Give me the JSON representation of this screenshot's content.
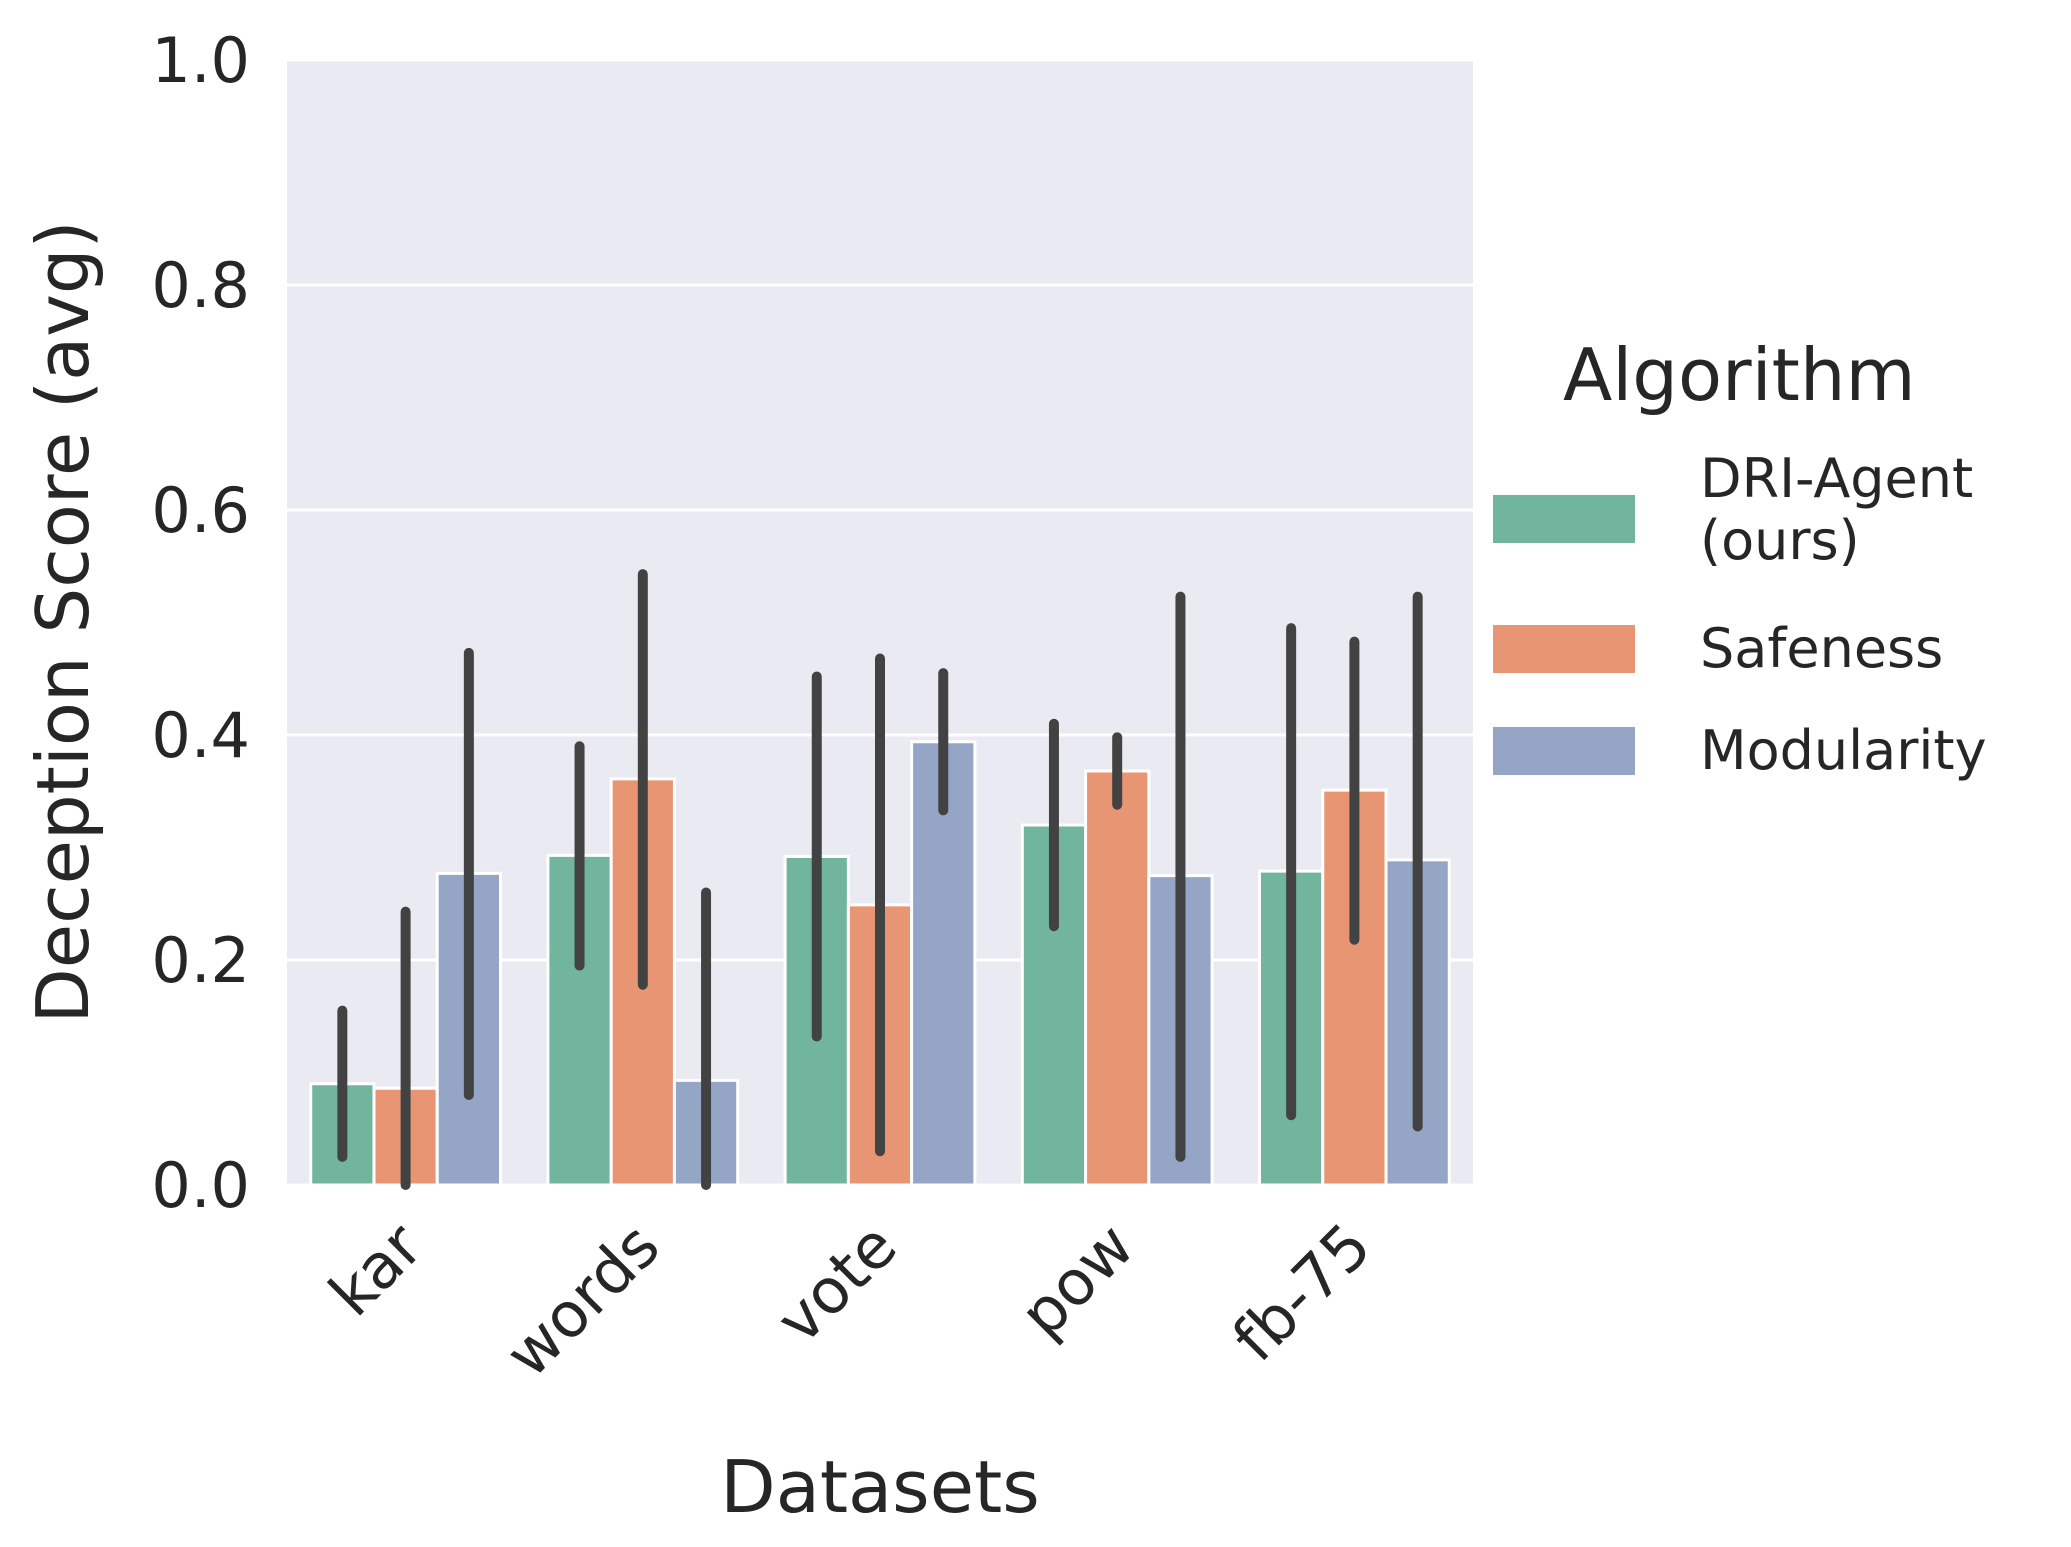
{
  "chart_data": {
    "type": "bar",
    "xlabel": "Datasets",
    "ylabel": "Deception Score (avg)",
    "ylim": [
      0,
      1.0
    ],
    "yticks": [
      "0.0",
      "0.2",
      "0.4",
      "0.6",
      "0.8",
      "1.0"
    ],
    "grid": true,
    "categories": [
      "kar",
      "words",
      "vote",
      "pow",
      "fb-75"
    ],
    "legend": {
      "title": "Algorithm",
      "placement": "right"
    },
    "series": [
      {
        "name": "DRI-Agent\n(ours)",
        "color": "#72b59f",
        "values": [
          0.09,
          0.293,
          0.292,
          0.32,
          0.279
        ],
        "err_low": [
          0.025,
          0.195,
          0.132,
          0.23,
          0.062
        ],
        "err_high": [
          0.155,
          0.39,
          0.452,
          0.41,
          0.495
        ]
      },
      {
        "name": "Safeness",
        "color": "#e89573",
        "values": [
          0.086,
          0.361,
          0.249,
          0.368,
          0.351
        ],
        "err_low": [
          0.0,
          0.178,
          0.03,
          0.338,
          0.218
        ],
        "err_high": [
          0.243,
          0.543,
          0.468,
          0.398,
          0.483
        ]
      },
      {
        "name": "Modularity",
        "color": "#95a5c5",
        "values": [
          0.277,
          0.093,
          0.394,
          0.275,
          0.289
        ],
        "err_low": [
          0.08,
          0.0,
          0.333,
          0.025,
          0.052
        ],
        "err_high": [
          0.473,
          0.26,
          0.455,
          0.523,
          0.523
        ]
      }
    ]
  }
}
